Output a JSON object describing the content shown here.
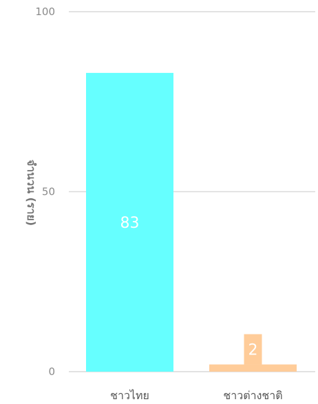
{
  "chart_data": {
    "type": "bar",
    "categories": [
      "ชาวไทย",
      "ชาวต่างชาติ"
    ],
    "values": [
      83,
      2
    ],
    "data_labels": [
      "83",
      "2"
    ],
    "ylabel": "จำนวน (ราย)",
    "ylim": [
      0,
      100
    ],
    "yticks": [
      0,
      50,
      100
    ],
    "ytick_labels": [
      "0",
      "50",
      "100"
    ],
    "grid": true,
    "colors": [
      "#66ffff",
      "#ffcc99"
    ],
    "data_label_color": "#ffffff",
    "grid_color": "#d9d9d9"
  }
}
